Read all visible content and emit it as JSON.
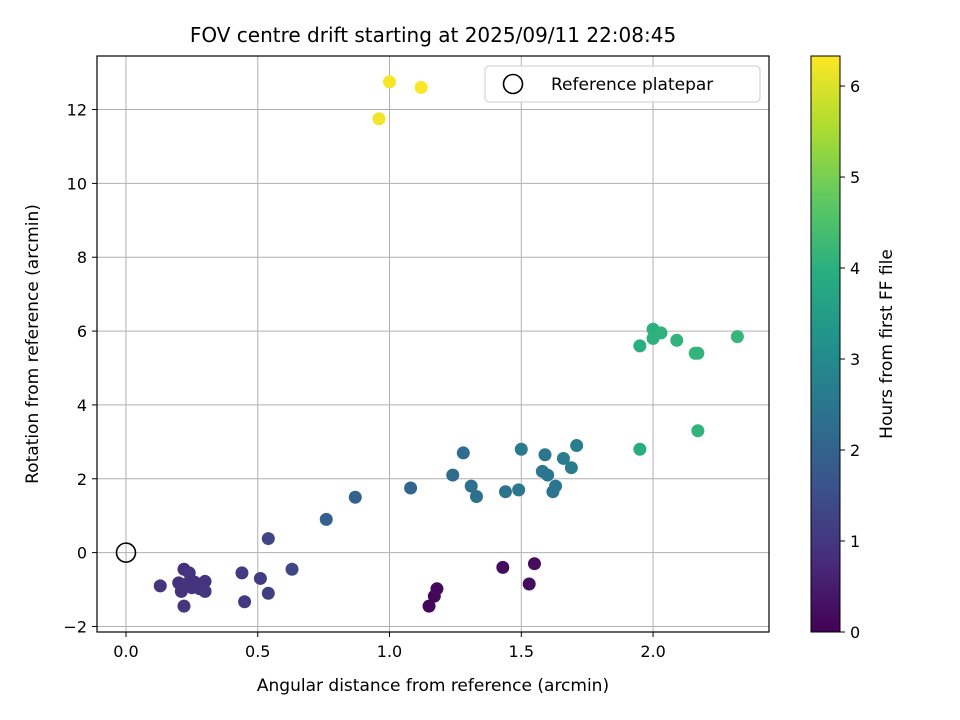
{
  "chart_data": {
    "type": "scatter",
    "title": "FOV centre drift starting at 2025/09/11 22:08:45",
    "xlabel": "Angular distance from reference (arcmin)",
    "ylabel": "Rotation from reference (arcmin)",
    "xlim": [
      -0.11,
      2.44
    ],
    "ylim": [
      -2.15,
      13.45
    ],
    "x_ticks": [
      0.0,
      0.5,
      1.0,
      1.5,
      2.0
    ],
    "x_tick_labels": [
      "0.0",
      "0.5",
      "1.0",
      "1.5",
      "2.0"
    ],
    "y_ticks": [
      -2,
      0,
      2,
      4,
      6,
      8,
      10,
      12
    ],
    "y_tick_labels": [
      "−2",
      "0",
      "2",
      "4",
      "6",
      "8",
      "10",
      "12"
    ],
    "grid": true,
    "legend": {
      "placement": "top-right",
      "entries": [
        "Reference platepar"
      ]
    },
    "reference_point": {
      "x": 0.0,
      "y": 0.0
    },
    "colorbar": {
      "label": "Hours from first FF file",
      "range": [
        0,
        6.33
      ],
      "ticks": [
        0,
        1,
        2,
        3,
        4,
        5,
        6
      ],
      "tick_labels": [
        "0",
        "1",
        "2",
        "3",
        "4",
        "5",
        "6"
      ],
      "colormap": "viridis"
    },
    "points": [
      {
        "x": 1.15,
        "y": -1.45,
        "c": 0.1
      },
      {
        "x": 1.17,
        "y": -1.18,
        "c": 0.12
      },
      {
        "x": 1.18,
        "y": -0.98,
        "c": 0.15
      },
      {
        "x": 1.43,
        "y": -0.4,
        "c": 0.18
      },
      {
        "x": 1.53,
        "y": -0.85,
        "c": 0.2
      },
      {
        "x": 1.55,
        "y": -0.3,
        "c": 0.22
      },
      {
        "x": 0.13,
        "y": -0.9,
        "c": 0.95
      },
      {
        "x": 0.2,
        "y": -0.82,
        "c": 0.9
      },
      {
        "x": 0.21,
        "y": -1.05,
        "c": 0.92
      },
      {
        "x": 0.22,
        "y": -0.45,
        "c": 0.88
      },
      {
        "x": 0.23,
        "y": -0.85,
        "c": 0.93
      },
      {
        "x": 0.24,
        "y": -0.55,
        "c": 0.96
      },
      {
        "x": 0.25,
        "y": -0.95,
        "c": 0.94
      },
      {
        "x": 0.26,
        "y": -0.8,
        "c": 0.91
      },
      {
        "x": 0.28,
        "y": -0.98,
        "c": 0.97
      },
      {
        "x": 0.3,
        "y": -0.78,
        "c": 0.95
      },
      {
        "x": 0.3,
        "y": -1.05,
        "c": 0.99
      },
      {
        "x": 0.22,
        "y": -1.45,
        "c": 1.0
      },
      {
        "x": 0.44,
        "y": -0.55,
        "c": 1.1
      },
      {
        "x": 0.45,
        "y": -1.33,
        "c": 1.05
      },
      {
        "x": 0.51,
        "y": -0.7,
        "c": 1.12
      },
      {
        "x": 0.54,
        "y": -1.1,
        "c": 1.15
      },
      {
        "x": 0.54,
        "y": 0.38,
        "c": 1.3
      },
      {
        "x": 0.63,
        "y": -0.45,
        "c": 1.35
      },
      {
        "x": 0.76,
        "y": 0.9,
        "c": 1.9
      },
      {
        "x": 0.87,
        "y": 1.5,
        "c": 2.0
      },
      {
        "x": 1.08,
        "y": 1.75,
        "c": 2.1
      },
      {
        "x": 1.24,
        "y": 2.1,
        "c": 2.2
      },
      {
        "x": 1.28,
        "y": 2.7,
        "c": 2.25
      },
      {
        "x": 1.31,
        "y": 1.8,
        "c": 2.3
      },
      {
        "x": 1.33,
        "y": 1.52,
        "c": 2.35
      },
      {
        "x": 1.44,
        "y": 1.65,
        "c": 2.4
      },
      {
        "x": 1.49,
        "y": 1.7,
        "c": 2.5
      },
      {
        "x": 1.5,
        "y": 2.8,
        "c": 2.6
      },
      {
        "x": 1.58,
        "y": 2.2,
        "c": 2.55
      },
      {
        "x": 1.59,
        "y": 2.65,
        "c": 2.5
      },
      {
        "x": 1.6,
        "y": 2.1,
        "c": 2.45
      },
      {
        "x": 1.62,
        "y": 1.65,
        "c": 2.4
      },
      {
        "x": 1.63,
        "y": 1.8,
        "c": 2.45
      },
      {
        "x": 1.66,
        "y": 2.55,
        "c": 2.6
      },
      {
        "x": 1.69,
        "y": 2.3,
        "c": 2.65
      },
      {
        "x": 1.71,
        "y": 2.9,
        "c": 2.7
      },
      {
        "x": 1.95,
        "y": 2.8,
        "c": 3.9
      },
      {
        "x": 1.95,
        "y": 5.6,
        "c": 3.95
      },
      {
        "x": 2.0,
        "y": 6.05,
        "c": 4.0
      },
      {
        "x": 2.0,
        "y": 5.8,
        "c": 4.05
      },
      {
        "x": 2.03,
        "y": 5.95,
        "c": 4.05
      },
      {
        "x": 2.09,
        "y": 5.75,
        "c": 4.1
      },
      {
        "x": 2.16,
        "y": 5.4,
        "c": 4.15
      },
      {
        "x": 2.17,
        "y": 5.4,
        "c": 4.1
      },
      {
        "x": 2.17,
        "y": 3.3,
        "c": 4.1
      },
      {
        "x": 2.32,
        "y": 5.85,
        "c": 4.15
      },
      {
        "x": 0.96,
        "y": 11.75,
        "c": 6.2
      },
      {
        "x": 1.0,
        "y": 12.75,
        "c": 6.25
      },
      {
        "x": 1.12,
        "y": 12.6,
        "c": 6.3
      }
    ]
  }
}
